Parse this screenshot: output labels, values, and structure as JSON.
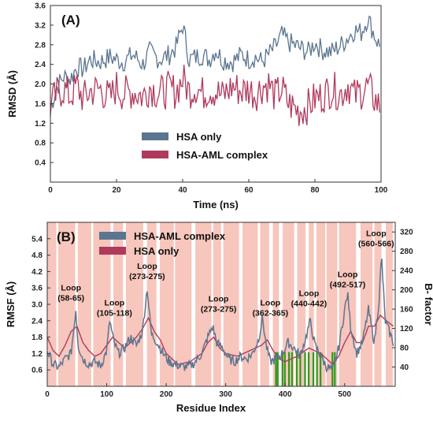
{
  "colors": {
    "hsa_only": "#5b7590",
    "hsa_aml": "#b03a5c",
    "band": "#f7c6bc",
    "green": "#2e9a1d"
  },
  "chart_data": [
    {
      "type": "line",
      "panel_label": "(A)",
      "xlabel": "Time (ns)",
      "ylabel": "RMSD (Å)",
      "xlim": [
        0,
        100
      ],
      "ylim": [
        0,
        3.6
      ],
      "xticks": [
        "0",
        "20",
        "40",
        "60",
        "80",
        "100"
      ],
      "yticks": [
        "0.4",
        "0.8",
        "1.2",
        "1.6",
        "2.0",
        "2.4",
        "2.8",
        "3.2",
        "3.6"
      ],
      "legend_position": "bottom-center",
      "series": [
        {
          "name": "HSA only",
          "x": [
            0,
            2,
            4,
            6,
            8,
            10,
            12,
            15,
            18,
            20,
            22,
            25,
            28,
            30,
            33,
            36,
            38,
            40,
            42,
            44,
            46,
            48,
            50,
            52,
            55,
            58,
            60,
            62,
            64,
            66,
            68,
            70,
            72,
            75,
            78,
            80,
            82,
            85,
            88,
            90,
            92,
            94,
            96,
            98,
            100
          ],
          "values": [
            1.5,
            1.95,
            2.15,
            2.1,
            2.35,
            2.3,
            2.5,
            2.45,
            2.55,
            2.5,
            2.45,
            2.6,
            2.4,
            2.65,
            2.5,
            2.6,
            2.75,
            3.2,
            2.5,
            2.55,
            2.6,
            2.5,
            2.7,
            2.5,
            2.45,
            2.6,
            2.5,
            2.55,
            2.45,
            2.6,
            2.75,
            3.0,
            2.85,
            2.75,
            2.65,
            2.85,
            2.7,
            2.65,
            2.8,
            2.95,
            3.1,
            3.05,
            3.35,
            3.0,
            2.7
          ]
        },
        {
          "name": "HSA-AML complex",
          "x": [
            0,
            2,
            4,
            6,
            8,
            10,
            12,
            15,
            18,
            20,
            22,
            25,
            28,
            30,
            33,
            36,
            38,
            40,
            42,
            44,
            46,
            48,
            50,
            52,
            55,
            58,
            60,
            62,
            64,
            66,
            68,
            70,
            72,
            75,
            78,
            80,
            82,
            85,
            88,
            90,
            92,
            94,
            96,
            98,
            100
          ],
          "values": [
            1.55,
            1.8,
            1.9,
            1.75,
            1.95,
            1.7,
            1.85,
            1.9,
            1.7,
            1.95,
            1.8,
            1.85,
            1.75,
            1.95,
            1.8,
            1.9,
            1.85,
            2.1,
            1.85,
            1.95,
            1.8,
            1.9,
            1.85,
            1.75,
            1.95,
            1.85,
            1.9,
            1.8,
            1.95,
            2.0,
            1.75,
            1.9,
            1.6,
            1.45,
            1.55,
            1.7,
            1.75,
            1.9,
            1.8,
            2.0,
            1.75,
            1.85,
            1.95,
            1.7,
            1.5
          ]
        }
      ]
    },
    {
      "type": "line",
      "panel_label": "(B)",
      "xlabel": "Residue Index",
      "ylabel": "RMSF (Å)",
      "ylabel_right": "B- factor",
      "xlim": [
        0,
        585
      ],
      "ylim": [
        0,
        6.0
      ],
      "ylim_right": [
        0,
        340
      ],
      "xticks": [
        "0",
        "100",
        "200",
        "300",
        "400",
        "500"
      ],
      "yticks": [
        "0.6",
        "1.2",
        "1.8",
        "2.4",
        "3.0",
        "3.6",
        "4.2",
        "4.8",
        "5.4"
      ],
      "yticks_right": [
        "40",
        "80",
        "120",
        "160",
        "200",
        "240",
        "280",
        "320"
      ],
      "legend_position": "top-left",
      "annotations": [
        {
          "label": "Loop",
          "range": "(58-65)",
          "x": 40,
          "y": 3.5
        },
        {
          "label": "Loop",
          "range": "(105-118)",
          "x": 113,
          "y": 2.95
        },
        {
          "label": "Loop",
          "range": "(273-275)",
          "x": 168,
          "y": 4.3
        },
        {
          "label": "Loop",
          "range": "(273-275)",
          "x": 288,
          "y": 3.1
        },
        {
          "label": "Loop",
          "range": "(362-365)",
          "x": 375,
          "y": 2.95
        },
        {
          "label": "Loop",
          "range": "(440-442)",
          "x": 440,
          "y": 3.3
        },
        {
          "label": "Loop",
          "range": "(492-517)",
          "x": 505,
          "y": 4.0
        },
        {
          "label": "Loop",
          "range": "(560-566)",
          "x": 553,
          "y": 5.5
        }
      ],
      "series": [
        {
          "name": "HSA-AML complex",
          "x": [
            0,
            10,
            20,
            30,
            40,
            48,
            52,
            60,
            70,
            80,
            90,
            100,
            105,
            112,
            120,
            130,
            140,
            150,
            160,
            168,
            175,
            185,
            195,
            205,
            215,
            230,
            245,
            260,
            270,
            278,
            285,
            295,
            305,
            315,
            325,
            335,
            345,
            355,
            362,
            368,
            375,
            385,
            395,
            405,
            415,
            425,
            435,
            442,
            450,
            460,
            470,
            480,
            490,
            500,
            505,
            510,
            520,
            530,
            540,
            550,
            558,
            562,
            568,
            575,
            582
          ],
          "values": [
            1.3,
            0.8,
            0.7,
            1.0,
            1.2,
            2.8,
            1.5,
            1.0,
            0.8,
            0.9,
            0.75,
            1.3,
            2.4,
            1.6,
            1.2,
            1.4,
            1.8,
            1.5,
            2.0,
            3.6,
            1.9,
            1.6,
            1.2,
            0.9,
            0.8,
            0.7,
            0.8,
            1.2,
            1.8,
            2.2,
            1.6,
            1.4,
            1.0,
            0.9,
            1.1,
            1.0,
            1.2,
            1.7,
            2.5,
            1.5,
            0.9,
            1.0,
            1.2,
            1.6,
            1.4,
            1.1,
            1.8,
            2.4,
            1.5,
            1.1,
            0.7,
            0.6,
            1.4,
            2.8,
            3.4,
            2.2,
            1.2,
            1.6,
            2.8,
            1.6,
            3.2,
            4.8,
            2.4,
            2.0,
            1.6
          ]
        },
        {
          "name": "HSA only",
          "x": [
            0,
            10,
            20,
            30,
            40,
            50,
            60,
            70,
            80,
            90,
            100,
            110,
            120,
            130,
            140,
            150,
            160,
            170,
            180,
            190,
            200,
            220,
            240,
            260,
            270,
            280,
            290,
            300,
            320,
            340,
            360,
            370,
            380,
            390,
            400,
            420,
            440,
            460,
            480,
            490,
            500,
            510,
            520,
            530,
            540,
            550,
            560,
            570,
            582
          ],
          "values": [
            1.8,
            1.3,
            1.1,
            1.5,
            2.0,
            2.2,
            1.6,
            1.3,
            1.1,
            1.2,
            1.5,
            1.8,
            1.6,
            1.4,
            1.6,
            1.8,
            2.1,
            2.5,
            2.0,
            1.7,
            1.2,
            0.8,
            0.9,
            1.2,
            1.6,
            1.8,
            1.4,
            1.2,
            1.1,
            1.3,
            1.5,
            1.7,
            1.3,
            1.0,
            0.9,
            1.1,
            1.4,
            1.2,
            0.8,
            1.1,
            1.6,
            2.0,
            1.6,
            1.6,
            2.2,
            2.2,
            2.6,
            2.4,
            2.2
          ]
        }
      ]
    }
  ]
}
